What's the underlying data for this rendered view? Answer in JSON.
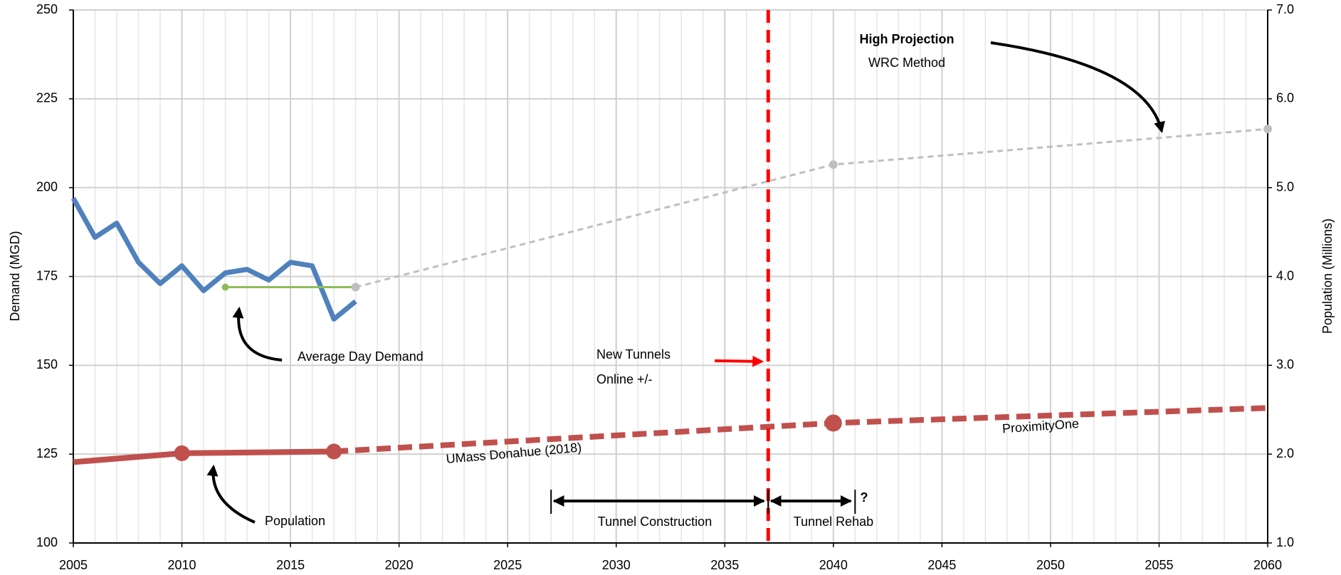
{
  "chart_data": {
    "type": "line",
    "ylabel": "Demand (MGD)",
    "y2label": "Population (Millions)",
    "xlim": [
      2005,
      2060
    ],
    "xticks": [
      2005,
      2010,
      2015,
      2020,
      2025,
      2030,
      2035,
      2040,
      2045,
      2050,
      2055,
      2060
    ],
    "ylim": [
      100,
      250
    ],
    "yticks": [
      100,
      125,
      150,
      175,
      200,
      225,
      250
    ],
    "y2lim": [
      1,
      7
    ],
    "y2ticks": [
      {
        "value": 1,
        "label": "1.0"
      },
      {
        "value": 2,
        "label": "2.0"
      },
      {
        "value": 3,
        "label": "3.0"
      },
      {
        "value": 4,
        "label": "4.0"
      },
      {
        "value": 5,
        "label": "5.0"
      },
      {
        "value": 6,
        "label": "6.0"
      },
      {
        "value": 7,
        "label": "7.0"
      }
    ],
    "grid": true,
    "series": [
      {
        "color": "#4f81bd",
        "axis": "y",
        "dash": false,
        "markers": [],
        "x": [
          2005,
          2006,
          2007,
          2008,
          2009,
          2010,
          2011,
          2012,
          2013,
          2014,
          2015,
          2016,
          2017,
          2018
        ],
        "values": [
          197,
          186,
          190,
          179,
          173,
          178,
          171,
          176,
          177,
          174,
          179,
          178,
          163,
          168
        ]
      },
      {
        "color": "#8fbc5a",
        "axis": "y",
        "dash": false,
        "markers": [
          0
        ],
        "x": [
          2012,
          2018
        ],
        "values": [
          172,
          172
        ]
      },
      {
        "color": "#bfbfbf",
        "axis": "y",
        "dash": true,
        "markers": [
          0,
          1,
          2
        ],
        "x": [
          2018,
          2040,
          2060
        ],
        "values": [
          172,
          206.5,
          216.5
        ]
      },
      {
        "color": "#c0504d",
        "axis": "y2",
        "dash": false,
        "markers": [
          1,
          2
        ],
        "x": [
          2005,
          2010,
          2017
        ],
        "values": [
          1.91,
          2.01,
          2.03
        ]
      },
      {
        "color": "#c0504d",
        "axis": "y2",
        "dash": true,
        "markers": [
          1
        ],
        "x": [
          2017,
          2040,
          2060
        ],
        "values": [
          2.03,
          2.35,
          2.52
        ]
      }
    ],
    "reference_line": {
      "x": 2037,
      "color": "#ff0000",
      "labels": [
        "New Tunnels",
        "Online +/-"
      ]
    },
    "spans": [
      {
        "label": "Tunnel Construction",
        "start": 2027,
        "end": 2037
      },
      {
        "label": "Tunnel Rehab",
        "start": 2037,
        "end": 2041
      }
    ],
    "annotations": [
      "High Projection",
      "WRC Method",
      "Average Day Demand",
      "Population",
      "UMass Donahue (2018)",
      "ProximityOne",
      "?"
    ]
  }
}
